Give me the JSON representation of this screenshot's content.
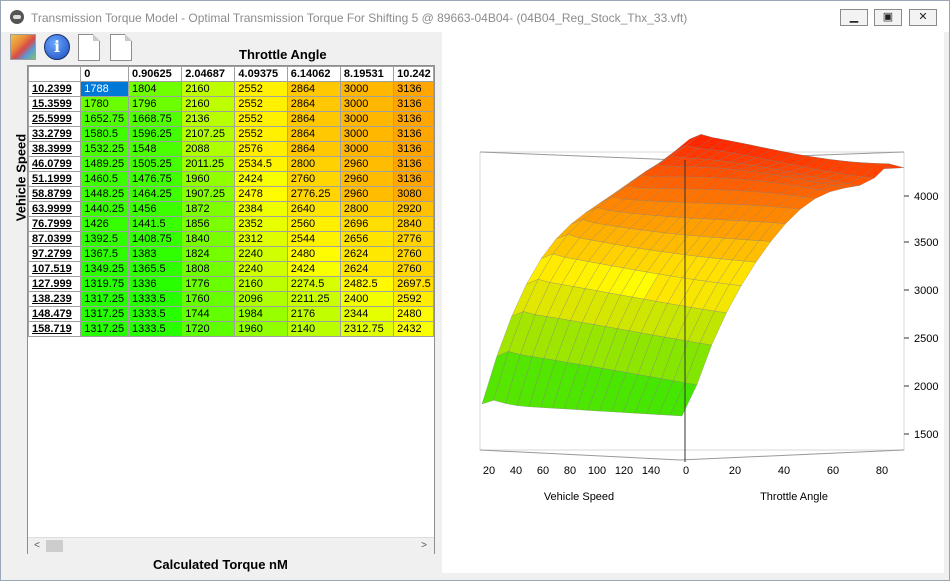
{
  "window": {
    "title": "Transmission Torque Model - Optimal Transmission Torque For Shifting 5 @ 89663-04B04- (04B04_Reg_Stock_Thx_33.vft)",
    "minimize_icon": "minimize-icon",
    "maximize_icon": "maximize-icon",
    "close_icon": "close-icon",
    "minimize_glyph": "▁",
    "maximize_glyph": "▣",
    "close_glyph": "✕"
  },
  "toolbar": {
    "items": [
      {
        "icon": "color-edit-icon"
      },
      {
        "icon": "info-icon",
        "glyph": "i"
      },
      {
        "icon": "document-icon"
      },
      {
        "icon": "document-icon"
      }
    ]
  },
  "table": {
    "column_axis_label": "Throttle Angle",
    "row_axis_label": "Vehicle Speed",
    "footer_label": "Calculated Torque nM",
    "columns": [
      "0",
      "0.90625",
      "2.04687",
      "4.09375",
      "6.14062",
      "8.19531",
      "10.242"
    ],
    "rows": [
      "10.2399",
      "15.3599",
      "25.5999",
      "33.2799",
      "38.3999",
      "46.0799",
      "51.1999",
      "58.8799",
      "63.9999",
      "76.7999",
      "87.0399",
      "97.2799",
      "107.519",
      "127.999",
      "138.239",
      "148.479",
      "158.719"
    ],
    "cells": [
      [
        "1788",
        "1804",
        "2160",
        "2552",
        "2864",
        "3000",
        "3136"
      ],
      [
        "1780",
        "1796",
        "2160",
        "2552",
        "2864",
        "3000",
        "3136"
      ],
      [
        "1652.75",
        "1668.75",
        "2136",
        "2552",
        "2864",
        "3000",
        "3136"
      ],
      [
        "1580.5",
        "1596.25",
        "2107.25",
        "2552",
        "2864",
        "3000",
        "3136"
      ],
      [
        "1532.25",
        "1548",
        "2088",
        "2576",
        "2864",
        "3000",
        "3136"
      ],
      [
        "1489.25",
        "1505.25",
        "2011.25",
        "2534.5",
        "2800",
        "2960",
        "3136"
      ],
      [
        "1460.5",
        "1476.75",
        "1960",
        "2424",
        "2760",
        "2960",
        "3136"
      ],
      [
        "1448.25",
        "1464.25",
        "1907.25",
        "2478",
        "2776.25",
        "2960",
        "3080"
      ],
      [
        "1440.25",
        "1456",
        "1872",
        "2384",
        "2640",
        "2800",
        "2920"
      ],
      [
        "1426",
        "1441.5",
        "1856",
        "2352",
        "2560",
        "2696",
        "2840"
      ],
      [
        "1392.5",
        "1408.75",
        "1840",
        "2312",
        "2544",
        "2656",
        "2776"
      ],
      [
        "1367.5",
        "1383",
        "1824",
        "2240",
        "2480",
        "2624",
        "2760"
      ],
      [
        "1349.25",
        "1365.5",
        "1808",
        "2240",
        "2424",
        "2624",
        "2760"
      ],
      [
        "1319.75",
        "1336",
        "1776",
        "2160",
        "2274.5",
        "2482.5",
        "2697.5"
      ],
      [
        "1317.25",
        "1333.5",
        "1760",
        "2096",
        "2211.25",
        "2400",
        "2592"
      ],
      [
        "1317.25",
        "1333.5",
        "1744",
        "1984",
        "2176",
        "2344",
        "2480"
      ],
      [
        "1317.25",
        "1333.5",
        "1720",
        "1960",
        "2140",
        "2312.75",
        "2432"
      ]
    ],
    "selected_cell": "1788",
    "selected_color": "#0078d7",
    "scroll_left_glyph": "<",
    "scroll_right_glyph": ">"
  },
  "chart": {
    "type": "surface",
    "z_ticks": [
      "4000",
      "3500",
      "3000",
      "2500",
      "2000",
      "1500"
    ],
    "speed_ticks": [
      "20",
      "40",
      "60",
      "80",
      "100",
      "120",
      "140"
    ],
    "throttle_ticks": [
      "0",
      "20",
      "40",
      "60",
      "80"
    ],
    "speed_label": "Vehicle Speed",
    "throttle_label": "Throttle Angle",
    "color_low": "#22cc00",
    "color_mid": "#ffff00",
    "color_high": "#ff0000"
  }
}
